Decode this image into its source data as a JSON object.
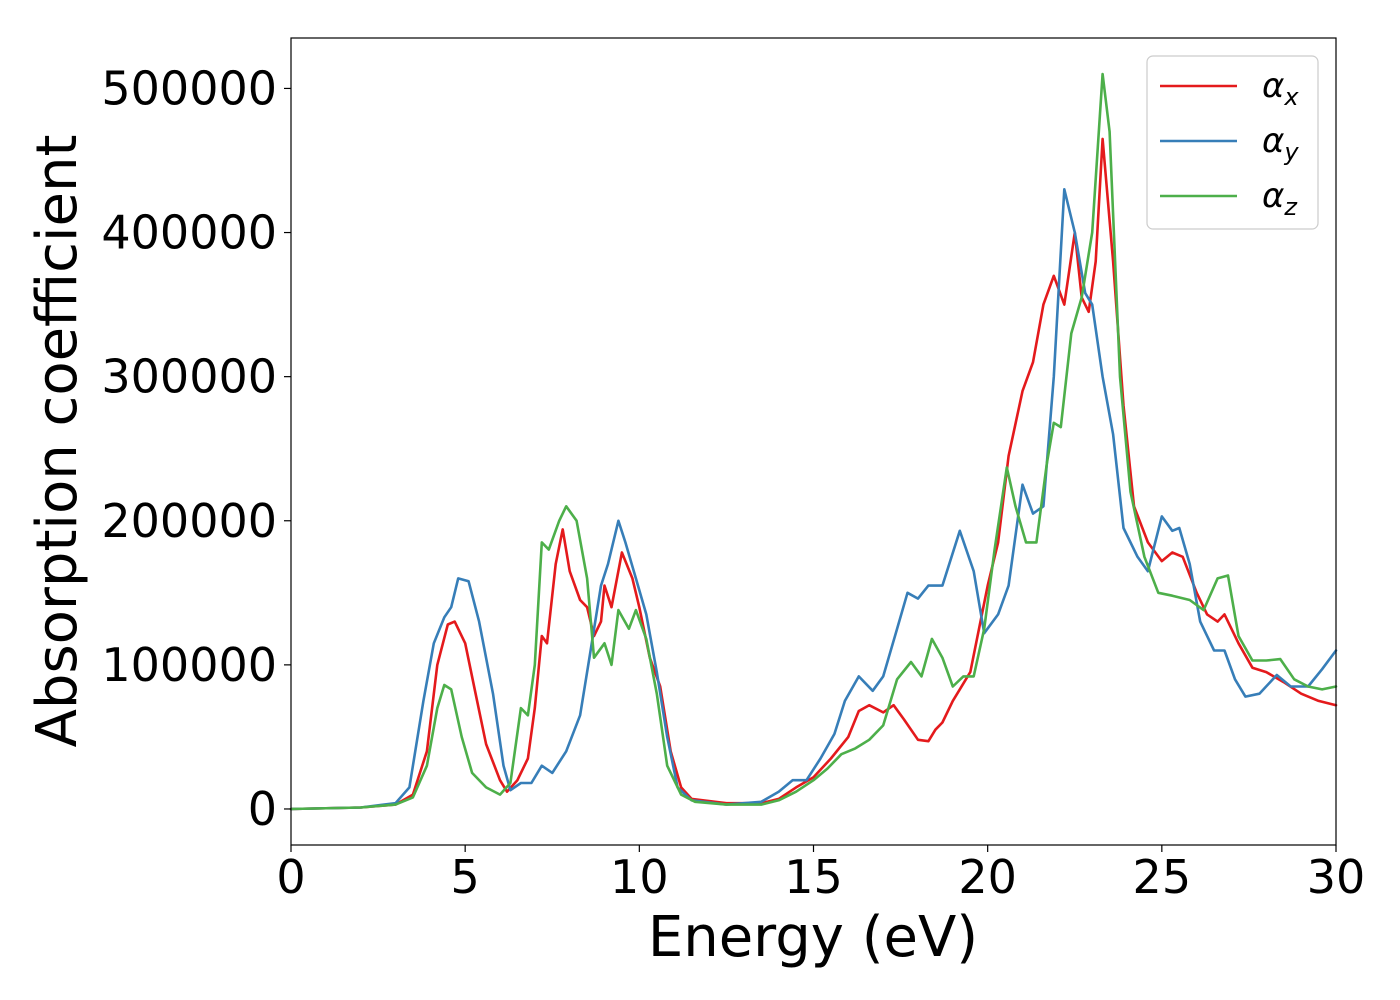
{
  "chart_data": {
    "type": "line",
    "title": "",
    "xlabel": "Energy (eV)",
    "ylabel": "Absorption coefficient",
    "xlim": [
      0,
      30
    ],
    "ylim": [
      -25000,
      535000
    ],
    "xticks": [
      "0",
      "5",
      "10",
      "15",
      "20",
      "25",
      "30"
    ],
    "yticks": [
      "0",
      "100000",
      "200000",
      "300000",
      "400000",
      "500000"
    ],
    "grid": false,
    "legend_position": "top-right",
    "series": [
      {
        "name": "α",
        "name_subscript": "x",
        "color": "#e41a1c",
        "points": [
          [
            0,
            0
          ],
          [
            2,
            1000
          ],
          [
            3,
            3000
          ],
          [
            3.5,
            10000
          ],
          [
            3.9,
            40000
          ],
          [
            4.2,
            100000
          ],
          [
            4.5,
            128000
          ],
          [
            4.7,
            130000
          ],
          [
            5.0,
            115000
          ],
          [
            5.3,
            80000
          ],
          [
            5.6,
            45000
          ],
          [
            6.0,
            20000
          ],
          [
            6.2,
            12000
          ],
          [
            6.5,
            20000
          ],
          [
            6.8,
            35000
          ],
          [
            7.0,
            70000
          ],
          [
            7.2,
            120000
          ],
          [
            7.35,
            115000
          ],
          [
            7.6,
            170000
          ],
          [
            7.8,
            194000
          ],
          [
            8.0,
            165000
          ],
          [
            8.3,
            145000
          ],
          [
            8.5,
            140000
          ],
          [
            8.7,
            120000
          ],
          [
            8.9,
            130000
          ],
          [
            9.0,
            155000
          ],
          [
            9.2,
            140000
          ],
          [
            9.5,
            178000
          ],
          [
            9.8,
            160000
          ],
          [
            10.0,
            140000
          ],
          [
            10.3,
            105000
          ],
          [
            10.6,
            85000
          ],
          [
            10.9,
            40000
          ],
          [
            11.2,
            15000
          ],
          [
            11.5,
            7000
          ],
          [
            12.5,
            4000
          ],
          [
            13.5,
            4000
          ],
          [
            14.0,
            7000
          ],
          [
            14.5,
            15000
          ],
          [
            15.0,
            22000
          ],
          [
            15.5,
            35000
          ],
          [
            16.0,
            50000
          ],
          [
            16.3,
            68000
          ],
          [
            16.6,
            72000
          ],
          [
            17.0,
            67000
          ],
          [
            17.3,
            72000
          ],
          [
            17.6,
            62000
          ],
          [
            18.0,
            48000
          ],
          [
            18.3,
            47000
          ],
          [
            18.5,
            55000
          ],
          [
            18.7,
            60000
          ],
          [
            19.0,
            75000
          ],
          [
            19.5,
            95000
          ],
          [
            20.0,
            155000
          ],
          [
            20.3,
            185000
          ],
          [
            20.6,
            245000
          ],
          [
            21.0,
            290000
          ],
          [
            21.3,
            310000
          ],
          [
            21.6,
            350000
          ],
          [
            21.9,
            370000
          ],
          [
            22.2,
            350000
          ],
          [
            22.5,
            400000
          ],
          [
            22.7,
            355000
          ],
          [
            22.9,
            345000
          ],
          [
            23.1,
            380000
          ],
          [
            23.3,
            465000
          ],
          [
            23.6,
            380000
          ],
          [
            23.9,
            280000
          ],
          [
            24.2,
            210000
          ],
          [
            24.6,
            185000
          ],
          [
            25.0,
            172000
          ],
          [
            25.3,
            178000
          ],
          [
            25.6,
            175000
          ],
          [
            26.0,
            150000
          ],
          [
            26.3,
            135000
          ],
          [
            26.6,
            130000
          ],
          [
            26.8,
            135000
          ],
          [
            27.2,
            115000
          ],
          [
            27.6,
            98000
          ],
          [
            28.0,
            95000
          ],
          [
            28.5,
            88000
          ],
          [
            29.0,
            80000
          ],
          [
            29.5,
            75000
          ],
          [
            30.0,
            72000
          ]
        ]
      },
      {
        "name": "α",
        "name_subscript": "y",
        "color": "#377eb8",
        "points": [
          [
            0,
            0
          ],
          [
            2,
            1000
          ],
          [
            3,
            4000
          ],
          [
            3.4,
            15000
          ],
          [
            3.8,
            75000
          ],
          [
            4.1,
            115000
          ],
          [
            4.4,
            133000
          ],
          [
            4.6,
            140000
          ],
          [
            4.8,
            160000
          ],
          [
            5.1,
            158000
          ],
          [
            5.4,
            130000
          ],
          [
            5.8,
            80000
          ],
          [
            6.1,
            30000
          ],
          [
            6.3,
            13000
          ],
          [
            6.6,
            18000
          ],
          [
            6.9,
            18000
          ],
          [
            7.2,
            30000
          ],
          [
            7.5,
            25000
          ],
          [
            7.9,
            40000
          ],
          [
            8.3,
            65000
          ],
          [
            8.6,
            110000
          ],
          [
            8.9,
            155000
          ],
          [
            9.1,
            170000
          ],
          [
            9.4,
            200000
          ],
          [
            9.6,
            185000
          ],
          [
            9.9,
            160000
          ],
          [
            10.2,
            135000
          ],
          [
            10.5,
            95000
          ],
          [
            10.8,
            50000
          ],
          [
            11.1,
            15000
          ],
          [
            11.5,
            6000
          ],
          [
            12.5,
            3000
          ],
          [
            13.5,
            5000
          ],
          [
            14.0,
            12000
          ],
          [
            14.4,
            20000
          ],
          [
            14.8,
            20000
          ],
          [
            15.2,
            35000
          ],
          [
            15.6,
            52000
          ],
          [
            15.9,
            75000
          ],
          [
            16.3,
            92000
          ],
          [
            16.7,
            82000
          ],
          [
            17.0,
            92000
          ],
          [
            17.4,
            125000
          ],
          [
            17.7,
            150000
          ],
          [
            18.0,
            146000
          ],
          [
            18.3,
            155000
          ],
          [
            18.7,
            155000
          ],
          [
            19.2,
            193000
          ],
          [
            19.6,
            165000
          ],
          [
            19.9,
            122000
          ],
          [
            20.3,
            135000
          ],
          [
            20.6,
            155000
          ],
          [
            21.0,
            225000
          ],
          [
            21.3,
            205000
          ],
          [
            21.6,
            210000
          ],
          [
            21.9,
            300000
          ],
          [
            22.2,
            430000
          ],
          [
            22.5,
            400000
          ],
          [
            22.8,
            358000
          ],
          [
            23.0,
            350000
          ],
          [
            23.3,
            300000
          ],
          [
            23.6,
            260000
          ],
          [
            23.9,
            195000
          ],
          [
            24.3,
            175000
          ],
          [
            24.6,
            165000
          ],
          [
            25.0,
            203000
          ],
          [
            25.3,
            193000
          ],
          [
            25.5,
            195000
          ],
          [
            25.8,
            170000
          ],
          [
            26.1,
            130000
          ],
          [
            26.5,
            110000
          ],
          [
            26.8,
            110000
          ],
          [
            27.1,
            90000
          ],
          [
            27.4,
            78000
          ],
          [
            27.8,
            80000
          ],
          [
            28.3,
            93000
          ],
          [
            28.7,
            85000
          ],
          [
            29.2,
            85000
          ],
          [
            29.6,
            97000
          ],
          [
            30.0,
            110000
          ]
        ]
      },
      {
        "name": "α",
        "name_subscript": "z",
        "color": "#4daf4a",
        "points": [
          [
            0,
            0
          ],
          [
            2,
            1000
          ],
          [
            3,
            3000
          ],
          [
            3.5,
            8000
          ],
          [
            3.9,
            30000
          ],
          [
            4.2,
            70000
          ],
          [
            4.4,
            86000
          ],
          [
            4.6,
            83000
          ],
          [
            4.9,
            50000
          ],
          [
            5.2,
            25000
          ],
          [
            5.6,
            15000
          ],
          [
            6.0,
            10000
          ],
          [
            6.3,
            18000
          ],
          [
            6.6,
            70000
          ],
          [
            6.8,
            65000
          ],
          [
            7.0,
            100000
          ],
          [
            7.2,
            185000
          ],
          [
            7.4,
            180000
          ],
          [
            7.7,
            200000
          ],
          [
            7.9,
            210000
          ],
          [
            8.2,
            200000
          ],
          [
            8.5,
            160000
          ],
          [
            8.7,
            105000
          ],
          [
            9.0,
            115000
          ],
          [
            9.2,
            100000
          ],
          [
            9.4,
            138000
          ],
          [
            9.7,
            125000
          ],
          [
            9.9,
            138000
          ],
          [
            10.2,
            118000
          ],
          [
            10.5,
            80000
          ],
          [
            10.8,
            30000
          ],
          [
            11.2,
            10000
          ],
          [
            11.6,
            5000
          ],
          [
            12.5,
            3000
          ],
          [
            13.5,
            3000
          ],
          [
            14.0,
            6000
          ],
          [
            14.5,
            12000
          ],
          [
            15.0,
            20000
          ],
          [
            15.4,
            28000
          ],
          [
            15.8,
            38000
          ],
          [
            16.2,
            42000
          ],
          [
            16.6,
            48000
          ],
          [
            17.0,
            58000
          ],
          [
            17.4,
            90000
          ],
          [
            17.8,
            102000
          ],
          [
            18.1,
            92000
          ],
          [
            18.4,
            118000
          ],
          [
            18.7,
            105000
          ],
          [
            19.0,
            85000
          ],
          [
            19.3,
            92000
          ],
          [
            19.6,
            92000
          ],
          [
            19.9,
            125000
          ],
          [
            20.2,
            180000
          ],
          [
            20.55,
            237000
          ],
          [
            20.8,
            210000
          ],
          [
            21.1,
            185000
          ],
          [
            21.4,
            185000
          ],
          [
            21.7,
            240000
          ],
          [
            21.9,
            268000
          ],
          [
            22.1,
            265000
          ],
          [
            22.4,
            330000
          ],
          [
            22.7,
            355000
          ],
          [
            23.0,
            400000
          ],
          [
            23.3,
            510000
          ],
          [
            23.5,
            470000
          ],
          [
            23.8,
            300000
          ],
          [
            24.1,
            220000
          ],
          [
            24.5,
            175000
          ],
          [
            24.9,
            150000
          ],
          [
            25.3,
            148000
          ],
          [
            25.8,
            145000
          ],
          [
            26.2,
            138000
          ],
          [
            26.6,
            160000
          ],
          [
            26.9,
            162000
          ],
          [
            27.2,
            120000
          ],
          [
            27.6,
            103000
          ],
          [
            28.0,
            103000
          ],
          [
            28.4,
            104000
          ],
          [
            28.8,
            90000
          ],
          [
            29.2,
            85000
          ],
          [
            29.6,
            83000
          ],
          [
            30.0,
            85000
          ]
        ]
      }
    ]
  }
}
